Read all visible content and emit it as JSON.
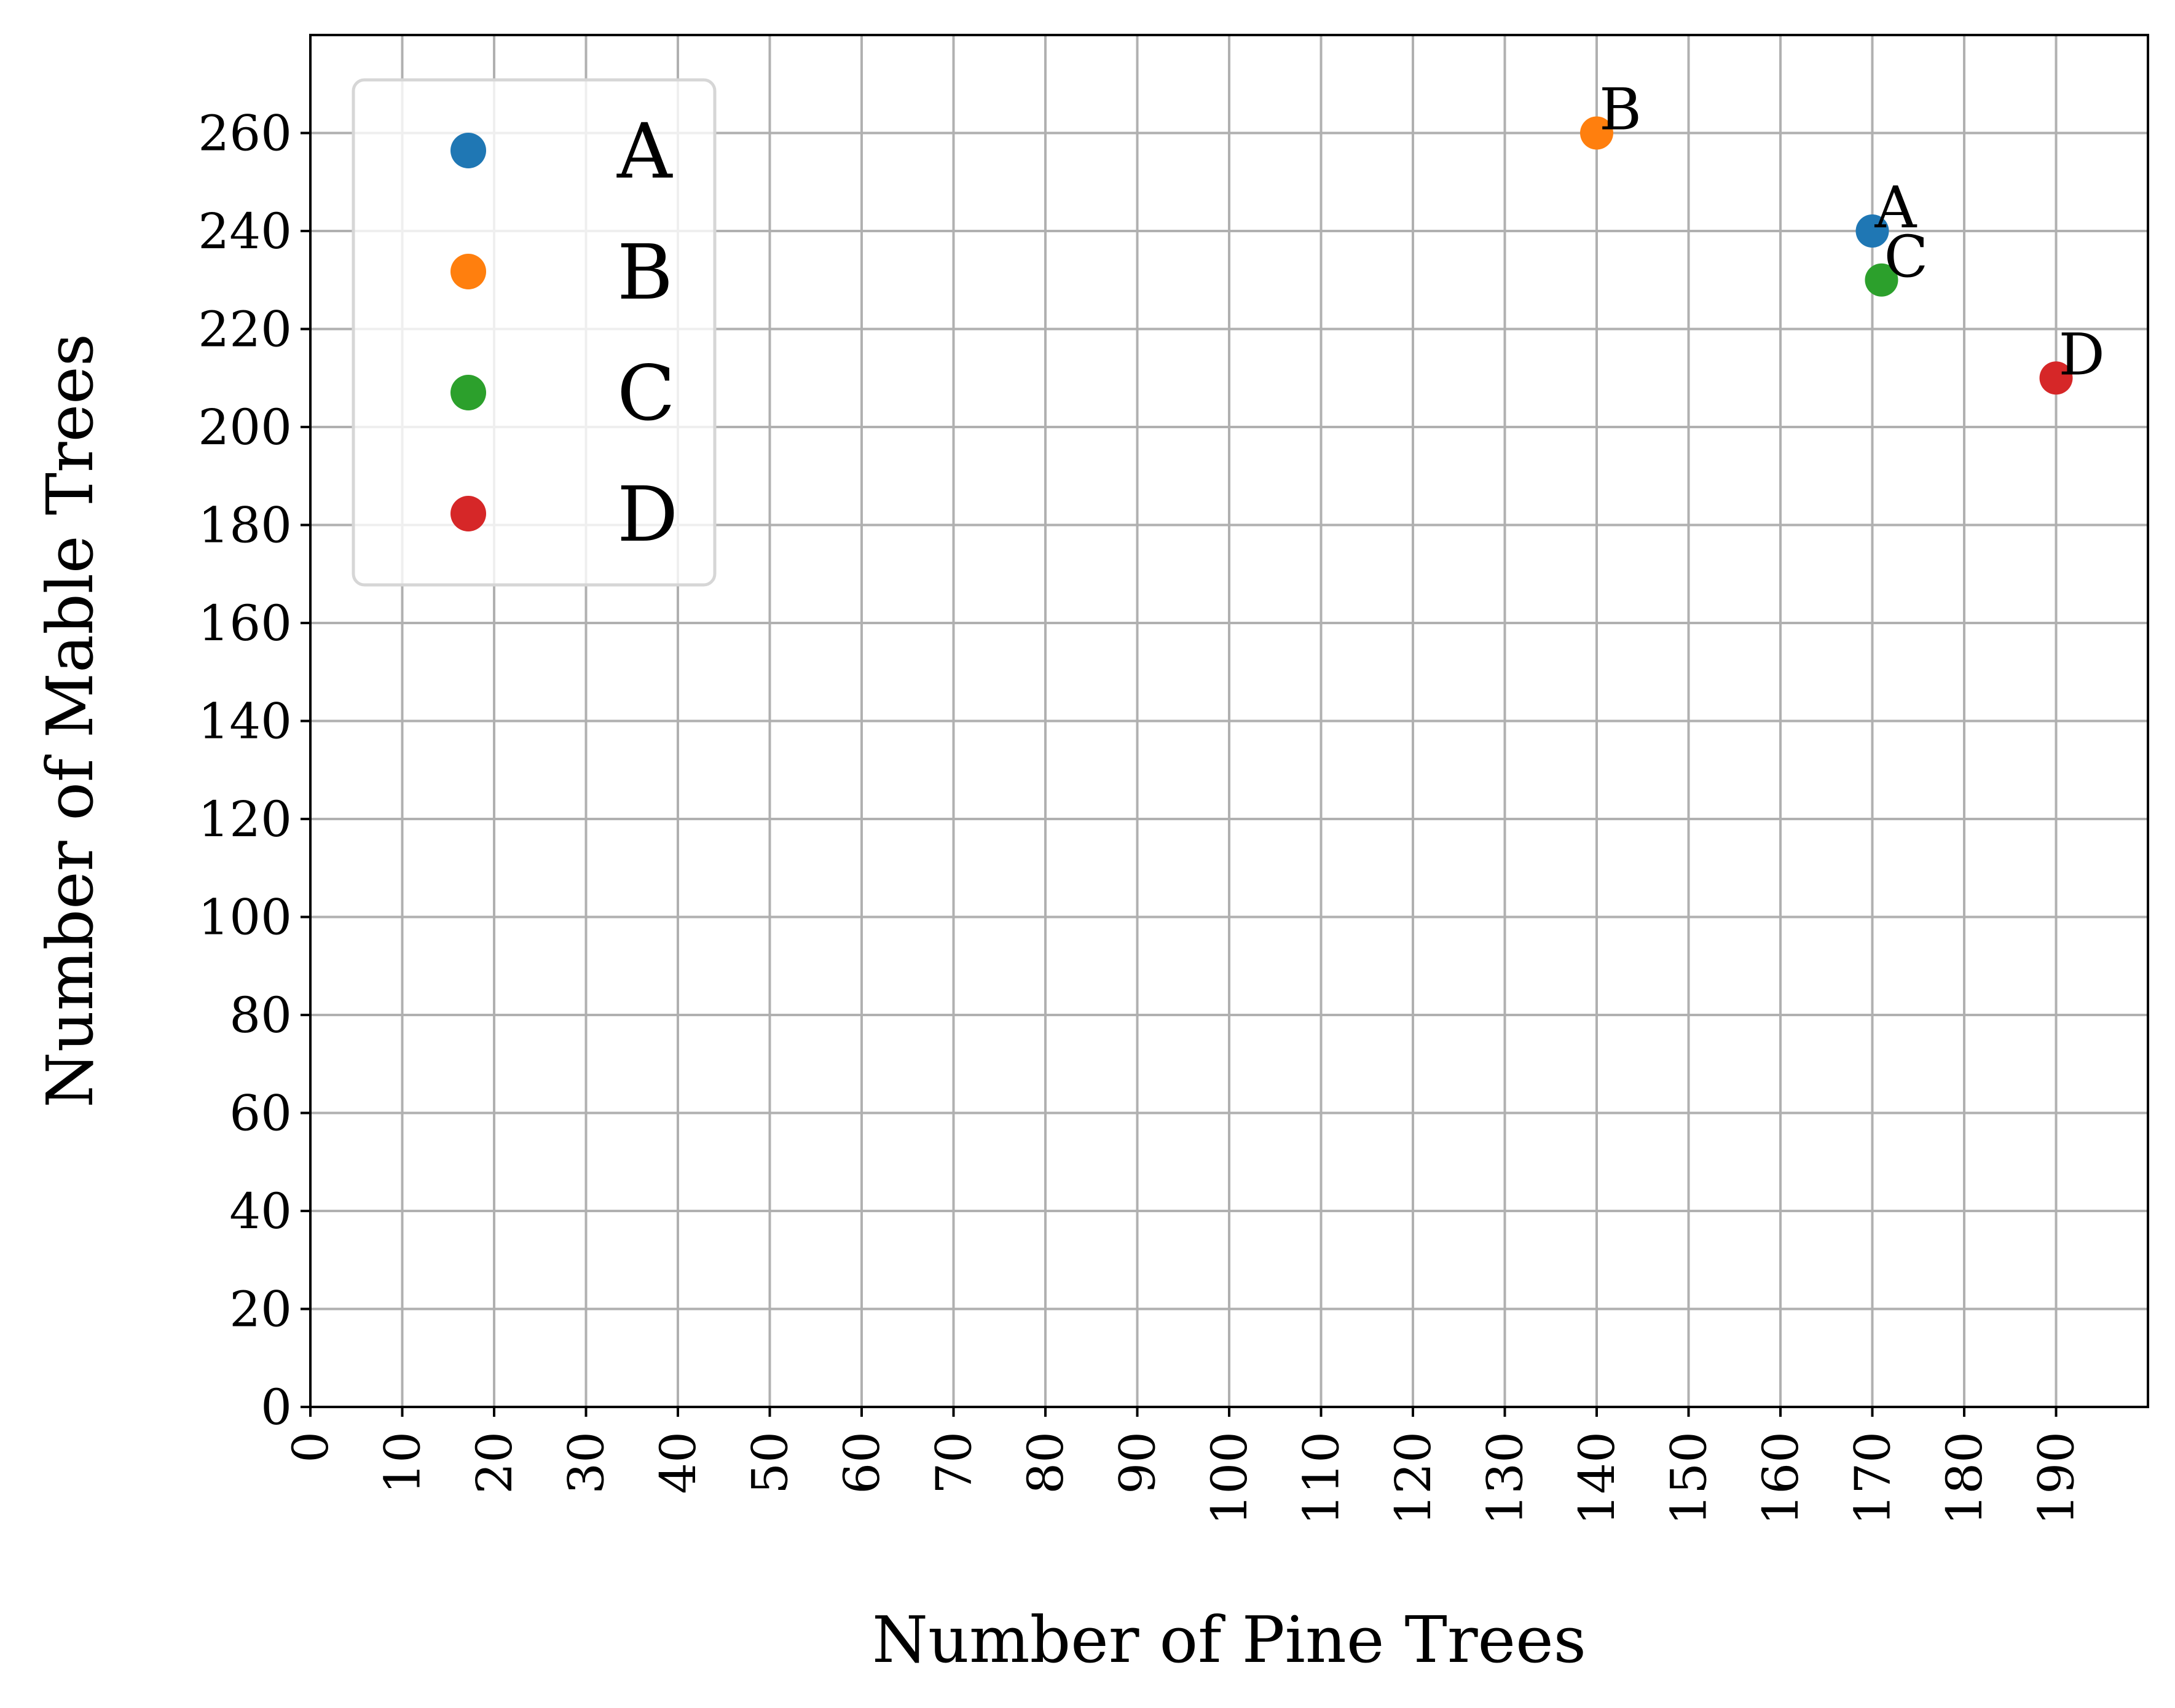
{
  "chart_data": {
    "type": "scatter",
    "xlabel": "Number of Pine Trees",
    "ylabel": "Number of Mable Trees",
    "xlim": [
      0,
      200
    ],
    "ylim": [
      0,
      280
    ],
    "xticks": [
      0,
      10,
      20,
      30,
      40,
      50,
      60,
      70,
      80,
      90,
      100,
      110,
      120,
      130,
      140,
      150,
      160,
      170,
      180,
      190
    ],
    "yticks": [
      0,
      20,
      40,
      60,
      80,
      100,
      120,
      140,
      160,
      180,
      200,
      220,
      240,
      260
    ],
    "grid": true,
    "legend_position": "upper-left",
    "series": [
      {
        "name": "A",
        "color": "#1f77b4",
        "points": [
          {
            "x": 170,
            "y": 240,
            "label": "A"
          }
        ]
      },
      {
        "name": "B",
        "color": "#ff7f0e",
        "points": [
          {
            "x": 140,
            "y": 260,
            "label": "B"
          }
        ]
      },
      {
        "name": "C",
        "color": "#2ca02c",
        "points": [
          {
            "x": 171,
            "y": 230,
            "label": "C"
          }
        ]
      },
      {
        "name": "D",
        "color": "#d62728",
        "points": [
          {
            "x": 190,
            "y": 210,
            "label": "D"
          }
        ]
      }
    ]
  }
}
